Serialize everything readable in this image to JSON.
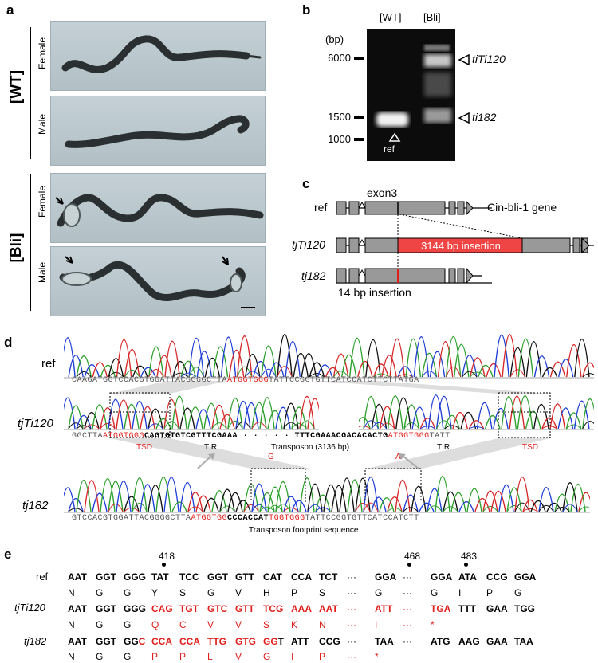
{
  "panels": {
    "a": "a",
    "b": "b",
    "c": "c",
    "d": "d",
    "e": "e"
  },
  "panel_a": {
    "groups": [
      "[WT]",
      "[Bli]"
    ],
    "sex_labels": [
      "Female",
      "Male",
      "Female",
      "Male"
    ]
  },
  "panel_b": {
    "lanes": [
      "[WT]",
      "[Bli]"
    ],
    "unit": "(bp)",
    "markers": [
      "6000",
      "1500",
      "1000"
    ],
    "bands": [
      "tiTi120",
      "ti182"
    ],
    "ref_label": "ref"
  },
  "panel_c": {
    "rows": [
      "ref",
      "tjTi120",
      "tj182"
    ],
    "exon_label": "exon3",
    "gene_label": "Cin-bli-1 gene",
    "insertion_label": "3144 bp insertion",
    "small_insertion_label": "14 bp insertion"
  },
  "panel_d": {
    "rows": [
      "ref",
      "tjTi120",
      "tj182"
    ],
    "ref_seq_a": "CAAGATGGTCCACGTGGATTACGGGGCTTA",
    "ref_seq_red": "ATGGTGGG",
    "ref_seq_b": "TATTCCGGTGTTCATCCATCTTCTTATGA",
    "ti_left_a": "GGCTTA",
    "ti_left_red": "ATGGTGGG",
    "ti_left_bold": "CAGTGTGTCGTTTCGAAA",
    "ti_dots": "· · · · ·",
    "ti_right_bold": "TTTCGAAACGACACACTG",
    "ti_right_red": "ATGGTGGG",
    "ti_right_b": "TATT",
    "tsd": "TSD",
    "tir": "TIR",
    "transposon_label": "Transposon (3136 bp)",
    "mut_left": "G",
    "mut_right": "A",
    "tj_seq_a": "GTCCACGTGGATTACGGGGCTTA",
    "tj_seq_red1": "ATGGTGG",
    "tj_seq_bold": "CCCACCAT",
    "tj_seq_red2": "TGGTGGG",
    "tj_seq_b": "TATTCCGGTGTTCATCCATCTT",
    "footprint_label": "Transposon footprint sequence"
  },
  "panel_e": {
    "positions": [
      "418",
      "468",
      "483"
    ],
    "row_labels": [
      "ref",
      "tjTi120",
      "tj182"
    ],
    "ref_codons": [
      "AAT",
      "GGT",
      "GGG",
      "TAT",
      "TCC",
      "GGT",
      "GTT",
      "CAT",
      "CCA",
      "TCT",
      "···",
      "GGA",
      "···",
      "GGA",
      "ATA",
      "CCG",
      "GGA"
    ],
    "ref_aa": [
      "N",
      "G",
      "G",
      "Y",
      "S",
      "G",
      "V",
      "H",
      "P",
      "S",
      "···",
      "G",
      "···",
      "G",
      "I",
      "P",
      "G"
    ],
    "ti_codons": [
      "AAT",
      "GGT",
      "GGG",
      "CAG",
      "TGT",
      "GTC",
      "GTT",
      "TCG",
      "AAA",
      "AAT",
      "···",
      "ATT",
      "···",
      "TGA",
      "TTT",
      "GAA",
      "TGG"
    ],
    "ti_aa": [
      "N",
      "G",
      "G",
      "Q",
      "C",
      "V",
      "V",
      "S",
      "K",
      "N",
      "···",
      "I",
      "···",
      "*",
      "",
      "",
      ""
    ],
    "tj_codons": [
      "AAT",
      "GGT",
      "GGC",
      "CCA",
      "CCA",
      "TTG",
      "GTG",
      "GGT",
      "ATT",
      "CCG",
      "···",
      "TAA",
      "···",
      "ATG",
      "AAG",
      "GAA",
      "TAA"
    ],
    "tj_aa": [
      "N",
      "G",
      "G",
      "P",
      "P",
      "L",
      "V",
      "G",
      "I",
      "P",
      "···",
      "*",
      "",
      "",
      "",
      "",
      ""
    ]
  }
}
